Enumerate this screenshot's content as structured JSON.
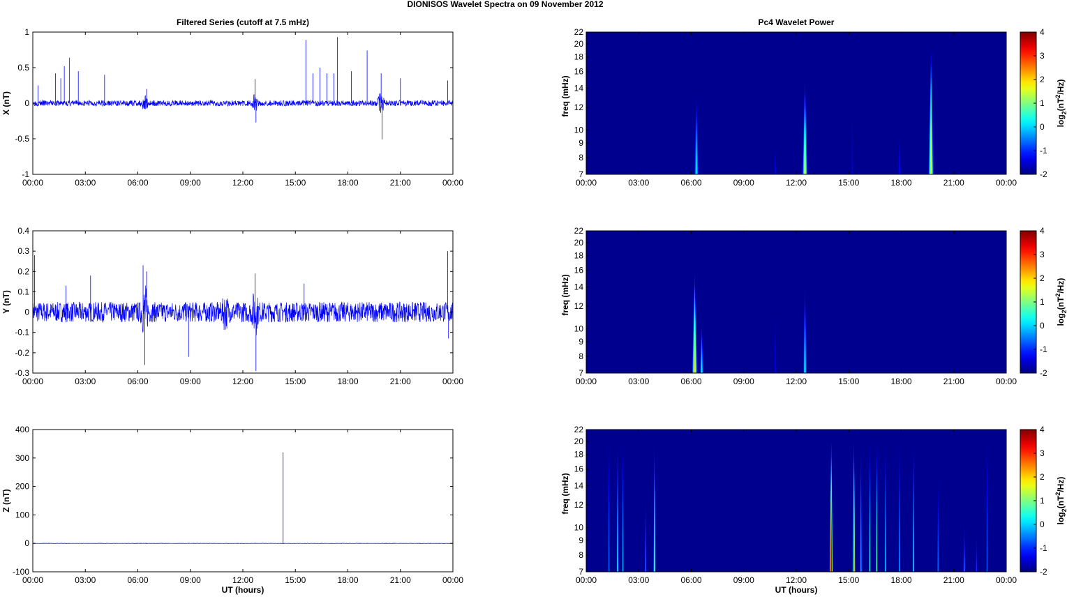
{
  "title": "DIONISOS Wavelet Spectra on 09 November  2012",
  "chart_data": [
    {
      "type": "line",
      "panel": "X",
      "title": "Filtered Series (cutoff at 7.5 mHz)",
      "xlabel": "",
      "ylabel": "X (nT)",
      "xlim": [
        0,
        24
      ],
      "ylim": [
        -1,
        1
      ],
      "yticks": [
        "-1",
        "-0.5",
        "0",
        "0.5",
        "1"
      ],
      "ytick_values": [
        -1,
        -0.5,
        0,
        0.5,
        1
      ],
      "noise_amplitude": 0.04,
      "seed": 3,
      "spikes": [
        [
          0.3,
          0.25
        ],
        [
          1.3,
          0.42
        ],
        [
          1.6,
          0.35
        ],
        [
          1.8,
          0.52
        ],
        [
          2.1,
          0.64
        ],
        [
          2.6,
          0.45
        ],
        [
          4.1,
          0.4
        ],
        [
          6.5,
          0.2
        ],
        [
          12.7,
          0.34
        ],
        [
          12.75,
          -0.27
        ],
        [
          15.6,
          0.89
        ],
        [
          16.0,
          0.42
        ],
        [
          16.4,
          0.5
        ],
        [
          16.8,
          0.42
        ],
        [
          17.2,
          0.42
        ],
        [
          17.4,
          0.93
        ],
        [
          18.2,
          0.45
        ],
        [
          19.1,
          0.74
        ],
        [
          19.9,
          0.42
        ],
        [
          19.95,
          -0.51
        ],
        [
          21.0,
          0.35
        ],
        [
          23.7,
          0.32
        ]
      ],
      "bursts": [
        [
          6.4,
          0.08
        ],
        [
          12.7,
          0.12
        ],
        [
          19.9,
          0.15
        ]
      ]
    },
    {
      "type": "line",
      "panel": "Y",
      "xlabel": "",
      "ylabel": "Y (nT)",
      "xlim": [
        0,
        24
      ],
      "ylim": [
        -0.3,
        0.4
      ],
      "yticks": [
        "-0.3",
        "-0.2",
        "-0.1",
        "0",
        "0.1",
        "0.2",
        "0.3",
        "0.4"
      ],
      "ytick_values": [
        -0.3,
        -0.2,
        -0.1,
        0,
        0.1,
        0.2,
        0.3,
        0.4
      ],
      "noise_amplitude": 0.05,
      "seed": 7,
      "spikes": [
        [
          0.1,
          0.28
        ],
        [
          1.9,
          0.13
        ],
        [
          3.3,
          0.18
        ],
        [
          6.3,
          0.23
        ],
        [
          6.4,
          -0.26
        ],
        [
          6.5,
          0.2
        ],
        [
          8.9,
          -0.22
        ],
        [
          12.7,
          0.19
        ],
        [
          12.75,
          -0.29
        ],
        [
          15.5,
          0.14
        ],
        [
          23.7,
          0.3
        ],
        [
          23.75,
          -0.13
        ]
      ],
      "bursts": [
        [
          6.4,
          0.1
        ],
        [
          11.0,
          0.05
        ],
        [
          12.7,
          0.08
        ]
      ]
    },
    {
      "type": "line",
      "panel": "Z",
      "xlabel": "UT (hours)",
      "ylabel": "Z (nT)",
      "xlim": [
        0,
        24
      ],
      "ylim": [
        -100,
        400
      ],
      "yticks": [
        "-100",
        "0",
        "100",
        "200",
        "300",
        "400"
      ],
      "ytick_values": [
        -100,
        0,
        100,
        200,
        300,
        400
      ],
      "noise_amplitude": 0.5,
      "seed": 11,
      "spikes": [
        [
          14.3,
          320
        ]
      ],
      "bursts": []
    },
    {
      "type": "heatmap",
      "panel": "X",
      "title": "Pc4 Wavelet Power",
      "xlabel": "",
      "ylabel": "freq (mHz)",
      "colorbar_label": "log2(nT2/Hz)",
      "clim": [
        -2,
        4
      ],
      "ylim": [
        7,
        22
      ],
      "events": [
        [
          6.3,
          7,
          14,
          0.2,
          0.3
        ],
        [
          10.8,
          7,
          9,
          -1.3,
          0.15
        ],
        [
          12.5,
          7,
          16,
          1.6,
          0.35
        ],
        [
          15.2,
          7,
          13,
          -1.4,
          0.12
        ],
        [
          17.9,
          7,
          10,
          -1.2,
          0.2
        ],
        [
          19.7,
          7,
          21,
          1.6,
          0.35
        ]
      ]
    },
    {
      "type": "heatmap",
      "panel": "Y",
      "xlabel": "",
      "ylabel": "freq (mHz)",
      "colorbar_label": "log2(nT2/Hz)",
      "clim": [
        -2,
        4
      ],
      "ylim": [
        7,
        22
      ],
      "events": [
        [
          6.2,
          7,
          17,
          2.0,
          0.35
        ],
        [
          6.6,
          7,
          11,
          0.3,
          0.25
        ],
        [
          10.8,
          7,
          12,
          -1.3,
          0.12
        ],
        [
          12.5,
          7,
          15,
          0.4,
          0.25
        ]
      ]
    },
    {
      "type": "heatmap",
      "panel": "Z",
      "xlabel": "UT (hours)",
      "ylabel": "freq (mHz)",
      "colorbar_label": "log2(nT2/Hz)",
      "clim": [
        -2,
        4
      ],
      "ylim": [
        7,
        22
      ],
      "events": [
        [
          1.3,
          7,
          22,
          -0.5,
          0.12
        ],
        [
          1.8,
          7,
          22,
          0.6,
          0.15
        ],
        [
          2.1,
          7,
          22,
          0.0,
          0.12
        ],
        [
          3.4,
          7,
          14,
          -0.3,
          0.12
        ],
        [
          3.9,
          7,
          22,
          1.2,
          0.15
        ],
        [
          14.0,
          7,
          22,
          4.0,
          0.22
        ],
        [
          15.3,
          7,
          22,
          3.0,
          0.18
        ],
        [
          15.7,
          7,
          22,
          0.2,
          0.12
        ],
        [
          16.2,
          7,
          22,
          0.5,
          0.12
        ],
        [
          16.6,
          7,
          22,
          1.0,
          0.12
        ],
        [
          17.1,
          7,
          22,
          0.3,
          0.12
        ],
        [
          17.9,
          7,
          22,
          0.0,
          0.12
        ],
        [
          18.7,
          7,
          22,
          0.6,
          0.12
        ],
        [
          20.1,
          7,
          16,
          -0.4,
          0.12
        ],
        [
          21.6,
          7,
          11,
          -0.2,
          0.12
        ],
        [
          22.3,
          7,
          10,
          -0.8,
          0.12
        ],
        [
          22.9,
          7,
          22,
          -0.6,
          0.12
        ]
      ]
    }
  ],
  "xticks": [
    "00:00",
    "03:00",
    "06:00",
    "09:00",
    "12:00",
    "15:00",
    "18:00",
    "21:00",
    "00:00"
  ],
  "freq_ticks": [
    "7",
    "8",
    "9",
    "10",
    "12",
    "14",
    "16",
    "18",
    "20",
    "22"
  ],
  "cbar_ticks": [
    "-2",
    "-1",
    "0",
    "1",
    "2",
    "3",
    "4"
  ],
  "labels": {
    "freq": "freq (mHz)",
    "ut": "UT (hours)",
    "cb_pre": "log",
    "cb_sub": "2",
    "cb_mid": "(nT",
    "cb_sup": "2",
    "cb_post": "/Hz)"
  },
  "colors": {
    "series": "#0000ff",
    "background": "#00008f"
  }
}
